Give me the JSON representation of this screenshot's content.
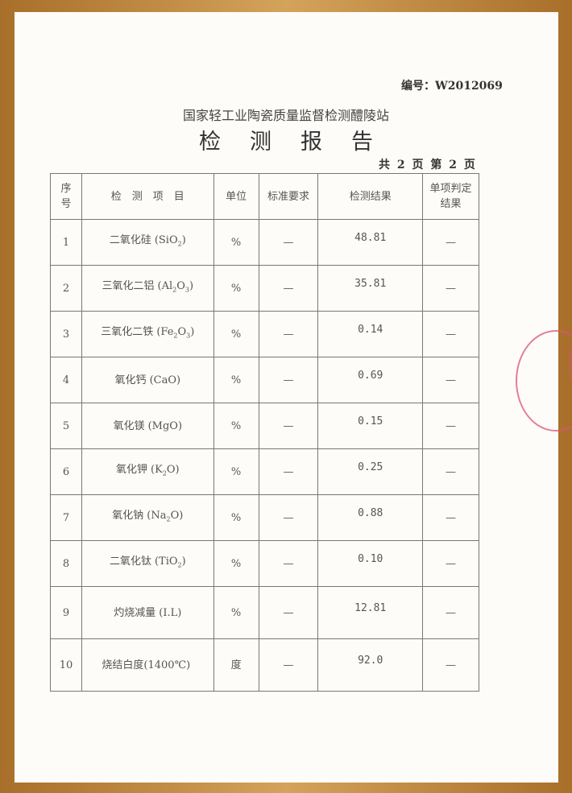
{
  "report": {
    "doc_number": "编号：W2012069",
    "organization": "国家轻工业陶瓷质量监督检测醴陵站",
    "title": "检测报告",
    "page_info": "共 2 页 第 2 页",
    "stamp_text": "国家轻工业陶瓷质量监督检测醴陵站",
    "headers": [
      "序号",
      "检　测　项　目",
      "单位",
      "标准要求",
      "检测结果",
      "单项判定结果"
    ],
    "rows": [
      {
        "no": "1",
        "name": "二氧化硅",
        "formula": [
          {
            "t": "(SiO"
          },
          {
            "s": "2"
          },
          {
            "t": ")"
          }
        ],
        "unit": "%",
        "standard": "—",
        "result": "48.81",
        "judgement": "—"
      },
      {
        "no": "2",
        "name": "三氧化二铝",
        "formula": [
          {
            "t": "(Al"
          },
          {
            "s": "2"
          },
          {
            "t": "O"
          },
          {
            "s": "3"
          },
          {
            "t": ")"
          }
        ],
        "unit": "%",
        "standard": "—",
        "result": "35.81",
        "judgement": "—"
      },
      {
        "no": "3",
        "name": "三氧化二铁",
        "formula": [
          {
            "t": "(Fe"
          },
          {
            "s": "2"
          },
          {
            "t": "O"
          },
          {
            "s": "3"
          },
          {
            "t": ")"
          }
        ],
        "unit": "%",
        "standard": "—",
        "result": "0.14",
        "judgement": "—"
      },
      {
        "no": "4",
        "name": "氧化钙",
        "formula": [
          {
            "t": "(CaO)"
          }
        ],
        "unit": "%",
        "standard": "—",
        "result": "0.69",
        "judgement": "—"
      },
      {
        "no": "5",
        "name": "氧化镁",
        "formula": [
          {
            "t": "(MgO)"
          }
        ],
        "unit": "%",
        "standard": "—",
        "result": "0.15",
        "judgement": "—"
      },
      {
        "no": "6",
        "name": "氧化钾",
        "formula": [
          {
            "t": "(K"
          },
          {
            "s": "2"
          },
          {
            "t": "O)"
          }
        ],
        "unit": "%",
        "standard": "—",
        "result": "0.25",
        "judgement": "—"
      },
      {
        "no": "7",
        "name": "氧化钠",
        "formula": [
          {
            "t": "(Na"
          },
          {
            "s": "2"
          },
          {
            "t": "O)"
          }
        ],
        "unit": "%",
        "standard": "—",
        "result": "0.88",
        "judgement": "—"
      },
      {
        "no": "8",
        "name": "二氧化钛",
        "formula": [
          {
            "t": "(TiO"
          },
          {
            "s": "2"
          },
          {
            "t": ")"
          }
        ],
        "unit": "%",
        "standard": "—",
        "result": "0.10",
        "judgement": "—"
      },
      {
        "no": "9",
        "name": "灼烧减量",
        "formula": [
          {
            "t": "(I.L)"
          }
        ],
        "unit": "%",
        "standard": "—",
        "result": "12.81",
        "judgement": "—"
      },
      {
        "no": "10",
        "name": "烧结白度(1400℃)",
        "formula": [],
        "unit": "度",
        "standard": "—",
        "result": "92.0",
        "judgement": "—"
      }
    ]
  }
}
